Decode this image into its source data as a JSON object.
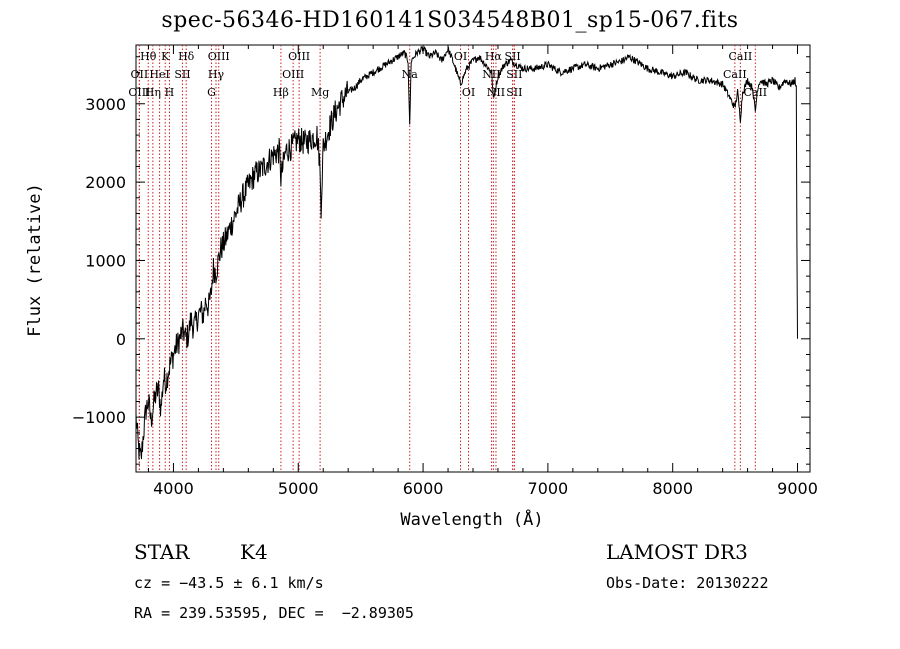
{
  "chart_data": {
    "type": "line",
    "title": "spec-56346-HD160141S034548B01_sp15-067.fits",
    "xlabel": "Wavelength (Å)",
    "ylabel": "Flux (relative)",
    "xlim": [
      3700,
      9100
    ],
    "ylim": [
      -1700,
      3750
    ],
    "xticks": [
      4000,
      5000,
      6000,
      7000,
      8000,
      9000
    ],
    "xtick_labels": [
      "4000",
      "5000",
      "6000",
      "7000",
      "8000",
      "9000"
    ],
    "yticks": [
      -1000,
      0,
      1000,
      2000,
      3000
    ],
    "ytick_labels": [
      "−1000",
      "0",
      "1000",
      "2000",
      "3000"
    ],
    "series": [
      {
        "name": "spectrum",
        "x": [
          3700,
          3720,
          3740,
          3760,
          3780,
          3800,
          3820,
          3840,
          3860,
          3880,
          3900,
          3920,
          3940,
          3960,
          3980,
          4000,
          4020,
          4040,
          4060,
          4080,
          4100,
          4120,
          4140,
          4160,
          4180,
          4200,
          4220,
          4240,
          4260,
          4280,
          4300,
          4320,
          4340,
          4360,
          4380,
          4400,
          4450,
          4500,
          4550,
          4600,
          4650,
          4700,
          4750,
          4800,
          4850,
          4861,
          4900,
          4950,
          5000,
          5050,
          5100,
          5150,
          5170,
          5183,
          5200,
          5250,
          5300,
          5350,
          5400,
          5450,
          5500,
          5550,
          5600,
          5650,
          5700,
          5750,
          5800,
          5850,
          5880,
          5893,
          5905,
          5950,
          6000,
          6050,
          6100,
          6150,
          6200,
          6250,
          6300,
          6350,
          6400,
          6450,
          6500,
          6550,
          6563,
          6600,
          6650,
          6700,
          6750,
          6800,
          6900,
          7000,
          7100,
          7200,
          7300,
          7400,
          7500,
          7600,
          7650,
          7700,
          7800,
          7900,
          8000,
          8100,
          8200,
          8300,
          8400,
          8450,
          8498,
          8520,
          8542,
          8560,
          8600,
          8640,
          8662,
          8680,
          8700,
          8750,
          8800,
          8850,
          8900,
          8950,
          8980,
          8990,
          8995,
          9000
        ],
        "y": [
          -1000,
          -1400,
          -1550,
          -1200,
          -900,
          -800,
          -1050,
          -850,
          -700,
          -650,
          -900,
          -500,
          -550,
          -400,
          -300,
          -200,
          -100,
          -50,
          50,
          100,
          0,
          50,
          250,
          150,
          200,
          300,
          350,
          300,
          500,
          400,
          550,
          900,
          850,
          1000,
          1150,
          1200,
          1400,
          1600,
          1800,
          1950,
          2100,
          2150,
          2250,
          2350,
          2400,
          2050,
          2400,
          2450,
          2550,
          2500,
          2550,
          2600,
          2300,
          1700,
          2450,
          2700,
          2900,
          3050,
          3150,
          3200,
          3300,
          3350,
          3400,
          3450,
          3500,
          3550,
          3600,
          3650,
          3550,
          2700,
          3550,
          3650,
          3700,
          3600,
          3650,
          3550,
          3700,
          3500,
          3250,
          3450,
          3550,
          3600,
          3500,
          3400,
          3050,
          3350,
          3500,
          3550,
          3500,
          3450,
          3450,
          3500,
          3400,
          3450,
          3500,
          3450,
          3500,
          3550,
          3600,
          3550,
          3450,
          3400,
          3350,
          3400,
          3300,
          3300,
          3250,
          3100,
          2950,
          3150,
          2800,
          3150,
          3300,
          3200,
          2900,
          3200,
          3300,
          3250,
          3300,
          3200,
          3300,
          3250,
          3300,
          3200,
          1200,
          0
        ]
      }
    ],
    "line_markers": [
      {
        "name": "Hθ",
        "wavelength": 3798,
        "row": 0
      },
      {
        "name": "OII",
        "wavelength": 3727,
        "row": 1
      },
      {
        "name": "OIII",
        "wavelength": 3727,
        "row": 2
      },
      {
        "name": "Hη",
        "wavelength": 3835,
        "row": 2
      },
      {
        "name": "K",
        "wavelength": 3934,
        "row": 0
      },
      {
        "name": "HeI",
        "wavelength": 3889,
        "row": 1
      },
      {
        "name": "H",
        "wavelength": 3968,
        "row": 2
      },
      {
        "name": "Hδ",
        "wavelength": 4102,
        "row": 0
      },
      {
        "name": "SII",
        "wavelength": 4072,
        "row": 1
      },
      {
        "name": "OIII",
        "wavelength": 4363,
        "row": 0
      },
      {
        "name": "Hγ",
        "wavelength": 4341,
        "row": 1
      },
      {
        "name": "G",
        "wavelength": 4305,
        "row": 2
      },
      {
        "name": "Hβ",
        "wavelength": 4861,
        "row": 2
      },
      {
        "name": "OIII",
        "wavelength": 5007,
        "row": 0
      },
      {
        "name": "OIII",
        "wavelength": 4959,
        "row": 1
      },
      {
        "name": "Mg",
        "wavelength": 5175,
        "row": 2
      },
      {
        "name": "Na",
        "wavelength": 5893,
        "row": 1
      },
      {
        "name": "OI",
        "wavelength": 6300,
        "row": 0
      },
      {
        "name": "OI",
        "wavelength": 6364,
        "row": 2
      },
      {
        "name": "Hα",
        "wavelength": 6563,
        "row": 0
      },
      {
        "name": "NII",
        "wavelength": 6548,
        "row": 1
      },
      {
        "name": "NII",
        "wavelength": 6584,
        "row": 2
      },
      {
        "name": "SII",
        "wavelength": 6717,
        "row": 0
      },
      {
        "name": "SII",
        "wavelength": 6731,
        "row": 1
      },
      {
        "name": "SII",
        "wavelength": 6731,
        "row": 2
      },
      {
        "name": "CaII",
        "wavelength": 8542,
        "row": 0
      },
      {
        "name": "CaII",
        "wavelength": 8498,
        "row": 1
      },
      {
        "name": "CaII",
        "wavelength": 8662,
        "row": 2
      }
    ]
  },
  "annotations": {
    "class_label": "STAR",
    "subclass_label": "K4",
    "cz_text": "cz = −43.5 ± 6.1 km/s",
    "coords_text": "RA = 239.53595, DEC =  −2.89305",
    "survey_label": "LAMOST DR3",
    "obs_date_text": "Obs-Date: 20130222"
  }
}
